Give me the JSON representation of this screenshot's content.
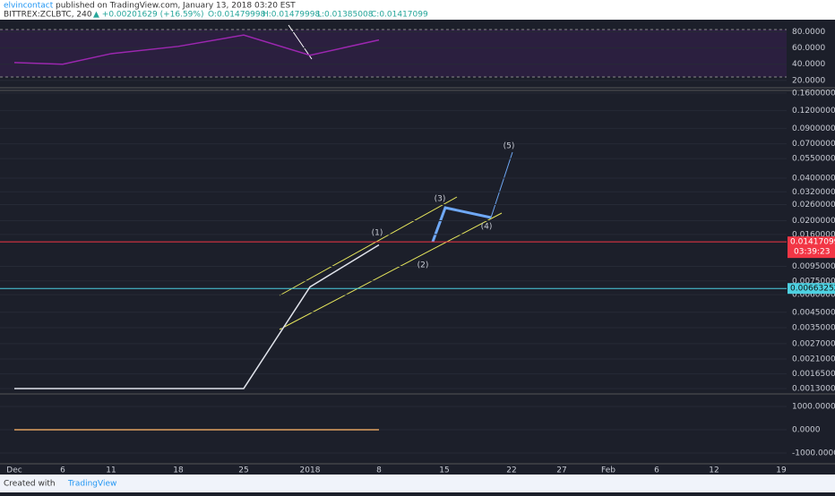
{
  "header": {
    "author": "elvincontact",
    "published": "published on TradingView.com, January 13, 2018 03:20 EST",
    "symbol": "BITTREX:ZCLBTC, 240",
    "change": "▲ +0.00201629 (+16.59%)",
    "ohlc": [
      "O:0.01479998",
      "H:0.01479998",
      "L:0.01385008",
      "C:0.01417099"
    ]
  },
  "chart_data": [
    {
      "type": "line",
      "log_scale": true,
      "categories": [
        "Dec",
        "6",
        "11",
        "18",
        "25",
        "2018",
        "8",
        "15",
        "22",
        "27",
        "Feb",
        "6",
        "12",
        "19"
      ],
      "series": [
        {
          "color": "#e0e3eb",
          "values": [
            0.0013,
            0.0013,
            0.0013,
            0.0013,
            0.0013,
            0.0068,
            0.0135,
            null,
            null,
            null,
            null,
            null,
            null,
            null
          ]
        }
      ],
      "ylim": [
        0.00119,
        0.167
      ],
      "yticks": [
        {
          "value": 0.16,
          "label": "0.16000000"
        },
        {
          "value": 0.12,
          "label": "0.12000000"
        },
        {
          "value": 0.09,
          "label": "0.09000000"
        },
        {
          "value": 0.07,
          "label": "0.07000000"
        },
        {
          "value": 0.055,
          "label": "0.05500000"
        },
        {
          "value": 0.04,
          "label": "0.04000000"
        },
        {
          "value": 0.032,
          "label": "0.03200000"
        },
        {
          "value": 0.026,
          "label": "0.02600000"
        },
        {
          "value": 0.02,
          "label": "0.02000000"
        },
        {
          "value": 0.016,
          "label": "0.01600000"
        },
        {
          "value": 0.0095,
          "label": "0.00950000"
        },
        {
          "value": 0.0075,
          "label": "0.00750000"
        },
        {
          "value": 0.006,
          "label": "0.00600000"
        },
        {
          "value": 0.0045,
          "label": "0.00450000"
        },
        {
          "value": 0.0035,
          "label": "0.00350000"
        },
        {
          "value": 0.0027,
          "label": "0.00270000"
        },
        {
          "value": 0.0021,
          "label": "0.00210000"
        },
        {
          "value": 0.00165,
          "label": "0.00165000"
        },
        {
          "value": 0.0013,
          "label": "0.00130000"
        }
      ],
      "price_lines": [
        0.01417099,
        0.00663252
      ],
      "price_line_colors": [
        "#f23645",
        "#4dd0e1"
      ],
      "timer": "03:39:23",
      "annotations": [
        "(1)",
        "(2)",
        "(3)",
        "(4)",
        "(5)"
      ]
    },
    {
      "type": "line",
      "series": [
        {
          "color": "#9c27b0",
          "values": [
            42,
            40,
            53,
            62,
            76,
            51,
            70,
            null,
            null,
            null,
            null,
            null,
            null,
            null
          ]
        }
      ],
      "ylim": [
        12,
        95
      ],
      "yticks": [
        {
          "value": 80,
          "label": "80.0000"
        },
        {
          "value": 60,
          "label": "60.0000"
        },
        {
          "value": 40,
          "label": "40.0000"
        },
        {
          "value": 20,
          "label": "20.0000"
        }
      ]
    },
    {
      "type": "line",
      "series": [
        {
          "color": "#e0a060",
          "values": [
            0,
            0,
            0,
            0,
            0,
            0,
            0,
            null,
            null,
            null,
            null,
            null,
            null,
            null
          ]
        }
      ],
      "ylim": [
        -1460,
        1500
      ],
      "yticks": [
        {
          "value": 1000,
          "label": "1000.0000"
        },
        {
          "value": 0,
          "label": "0.0000"
        },
        {
          "value": -1000,
          "label": "-1000.0000"
        }
      ]
    }
  ],
  "footer": {
    "created": "Created with",
    "brand": "TradingView"
  }
}
